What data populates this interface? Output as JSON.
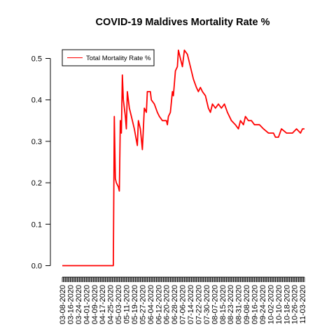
{
  "chart_data": {
    "type": "line",
    "title": "COVID-19 Maldives Mortality Rate %",
    "xlabel": "",
    "ylabel": "",
    "ylim": [
      0,
      0.5
    ],
    "yticks": [
      "0.0",
      "0.1",
      "0.2",
      "0.3",
      "0.4",
      "0.5"
    ],
    "grid": false,
    "legend_position": "top-left",
    "x_range": [
      "03-08-2020",
      "11-05-2020"
    ],
    "x_tick_labels": [
      "03-08-2020",
      "03-16-2020",
      "03-24-2020",
      "04-01-2020",
      "04-09-2020",
      "04-17-2020",
      "04-25-2020",
      "05-03-2020",
      "05-11-2020",
      "05-19-2020",
      "05-27-2020",
      "06-04-2020",
      "06-12-2020",
      "06-20-2020",
      "06-28-2020",
      "07-06-2020",
      "07-14-2020",
      "07-22-2020",
      "07-30-2020",
      "08-07-2020",
      "08-15-2020",
      "08-23-2020",
      "08-31-2020",
      "09-08-2020",
      "09-16-2020",
      "09-24-2020",
      "10-02-2020",
      "10-10-2020",
      "10-18-2020",
      "10-26-2020",
      "11-03-2020"
    ],
    "series": [
      {
        "name": "Total Mortality Rate %",
        "color": "#ff0000",
        "points": [
          [
            "03-08-2020",
            0.0
          ],
          [
            "04-17-2020",
            0.0
          ],
          [
            "04-28-2020",
            0.0
          ],
          [
            "04-29-2020",
            0.36
          ],
          [
            "04-30-2020",
            0.21
          ],
          [
            "05-01-2020",
            0.2
          ],
          [
            "05-03-2020",
            0.19
          ],
          [
            "05-04-2020",
            0.18
          ],
          [
            "05-05-2020",
            0.35
          ],
          [
            "05-06-2020",
            0.32
          ],
          [
            "05-07-2020",
            0.46
          ],
          [
            "05-08-2020",
            0.4
          ],
          [
            "05-10-2020",
            0.36
          ],
          [
            "05-11-2020",
            0.33
          ],
          [
            "05-12-2020",
            0.42
          ],
          [
            "05-14-2020",
            0.38
          ],
          [
            "05-16-2020",
            0.36
          ],
          [
            "05-19-2020",
            0.33
          ],
          [
            "05-22-2020",
            0.29
          ],
          [
            "05-23-2020",
            0.35
          ],
          [
            "05-25-2020",
            0.33
          ],
          [
            "05-27-2020",
            0.28
          ],
          [
            "05-29-2020",
            0.38
          ],
          [
            "05-31-2020",
            0.37
          ],
          [
            "06-01-2020",
            0.42
          ],
          [
            "06-04-2020",
            0.42
          ],
          [
            "06-05-2020",
            0.4
          ],
          [
            "06-08-2020",
            0.39
          ],
          [
            "06-11-2020",
            0.37
          ],
          [
            "06-13-2020",
            0.36
          ],
          [
            "06-16-2020",
            0.35
          ],
          [
            "06-20-2020",
            0.35
          ],
          [
            "06-21-2020",
            0.34
          ],
          [
            "06-22-2020",
            0.36
          ],
          [
            "06-24-2020",
            0.37
          ],
          [
            "06-26-2020",
            0.42
          ],
          [
            "06-27-2020",
            0.41
          ],
          [
            "06-29-2020",
            0.47
          ],
          [
            "07-01-2020",
            0.48
          ],
          [
            "07-02-2020",
            0.52
          ],
          [
            "07-04-2020",
            0.5
          ],
          [
            "07-06-2020",
            0.48
          ],
          [
            "07-08-2020",
            0.52
          ],
          [
            "07-11-2020",
            0.51
          ],
          [
            "07-14-2020",
            0.48
          ],
          [
            "07-17-2020",
            0.45
          ],
          [
            "07-20-2020",
            0.43
          ],
          [
            "07-22-2020",
            0.42
          ],
          [
            "07-24-2020",
            0.43
          ],
          [
            "07-26-2020",
            0.42
          ],
          [
            "07-29-2020",
            0.41
          ],
          [
            "08-01-2020",
            0.38
          ],
          [
            "08-03-2020",
            0.37
          ],
          [
            "08-05-2020",
            0.39
          ],
          [
            "08-08-2020",
            0.38
          ],
          [
            "08-11-2020",
            0.39
          ],
          [
            "08-14-2020",
            0.38
          ],
          [
            "08-17-2020",
            0.39
          ],
          [
            "08-20-2020",
            0.37
          ],
          [
            "08-24-2020",
            0.35
          ],
          [
            "08-28-2020",
            0.34
          ],
          [
            "08-31-2020",
            0.33
          ],
          [
            "09-02-2020",
            0.35
          ],
          [
            "09-05-2020",
            0.34
          ],
          [
            "09-07-2020",
            0.36
          ],
          [
            "09-10-2020",
            0.35
          ],
          [
            "09-13-2020",
            0.35
          ],
          [
            "09-16-2020",
            0.34
          ],
          [
            "09-21-2020",
            0.34
          ],
          [
            "09-25-2020",
            0.33
          ],
          [
            "09-30-2020",
            0.32
          ],
          [
            "10-05-2020",
            0.32
          ],
          [
            "10-07-2020",
            0.31
          ],
          [
            "10-10-2020",
            0.31
          ],
          [
            "10-13-2020",
            0.33
          ],
          [
            "10-18-2020",
            0.32
          ],
          [
            "10-24-2020",
            0.32
          ],
          [
            "10-28-2020",
            0.33
          ],
          [
            "11-01-2020",
            0.32
          ],
          [
            "11-03-2020",
            0.33
          ],
          [
            "11-05-2020",
            0.33
          ]
        ]
      }
    ]
  }
}
